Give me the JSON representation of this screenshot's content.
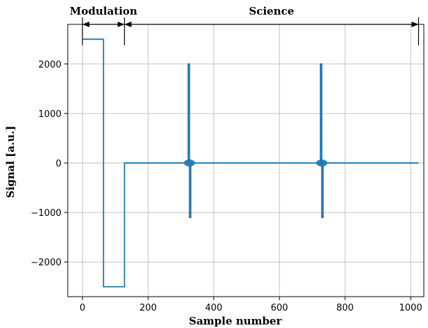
{
  "chart_data": {
    "type": "line",
    "title": "",
    "xlabel": "Sample number",
    "ylabel": "Signal [a.u.]",
    "xlim": [
      -45,
      1040
    ],
    "ylim": [
      -2700,
      2800
    ],
    "xticks": [
      0,
      200,
      400,
      600,
      800,
      1000
    ],
    "yticks": [
      -2000,
      -1000,
      0,
      1000,
      2000
    ],
    "xtick_labels": [
      "0",
      "200",
      "400",
      "600",
      "800",
      "1000"
    ],
    "ytick_labels": [
      "−2000",
      "−1000",
      "0",
      "1000",
      "2000"
    ],
    "grid": true,
    "line_color": "#1f77b4",
    "series": [
      {
        "x": [
          0,
          64,
          64,
          128,
          128,
          322,
          322,
          326,
          326,
          330,
          330,
          725,
          725,
          729,
          729,
          733,
          733,
          1024
        ],
        "values": [
          2500,
          2500,
          -2500,
          -2500,
          0,
          0,
          2000,
          2000,
          -1100,
          -1100,
          0,
          0,
          2000,
          2000,
          -1100,
          -1100,
          0,
          0
        ]
      }
    ],
    "regions": [
      {
        "label": "Modulation",
        "start": 0,
        "end": 128
      },
      {
        "label": "Science",
        "start": 128,
        "end": 1024
      }
    ]
  }
}
